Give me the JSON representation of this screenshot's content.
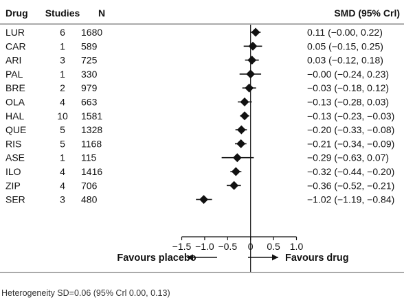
{
  "chart_data": {
    "type": "forest",
    "columns": {
      "drug": "Drug",
      "studies": "Studies",
      "n": "N",
      "smd": "SMD (95% Crl)"
    },
    "rows": [
      {
        "drug": "LUR",
        "studies": "6",
        "n": "1680",
        "smd": 0.11,
        "lo": -0.0,
        "hi": 0.22,
        "ci_text": "0.11 (−0.00, 0.22)"
      },
      {
        "drug": "CAR",
        "studies": "1",
        "n": "589",
        "smd": 0.05,
        "lo": -0.15,
        "hi": 0.25,
        "ci_text": "0.05 (−0.15, 0.25)"
      },
      {
        "drug": "ARI",
        "studies": "3",
        "n": "725",
        "smd": 0.03,
        "lo": -0.12,
        "hi": 0.18,
        "ci_text": "0.03 (−0.12, 0.18)"
      },
      {
        "drug": "PAL",
        "studies": "1",
        "n": "330",
        "smd": -0.0,
        "lo": -0.24,
        "hi": 0.23,
        "ci_text": "−0.00 (−0.24, 0.23)"
      },
      {
        "drug": "BRE",
        "studies": "2",
        "n": "979",
        "smd": -0.03,
        "lo": -0.18,
        "hi": 0.12,
        "ci_text": "−0.03 (−0.18, 0.12)"
      },
      {
        "drug": "OLA",
        "studies": "4",
        "n": "663",
        "smd": -0.13,
        "lo": -0.28,
        "hi": 0.03,
        "ci_text": "−0.13 (−0.28, 0.03)"
      },
      {
        "drug": "HAL",
        "studies": "10",
        "n": "1581",
        "smd": -0.13,
        "lo": -0.23,
        "hi": -0.03,
        "ci_text": "−0.13 (−0.23, −0.03)"
      },
      {
        "drug": "QUE",
        "studies": "5",
        "n": "1328",
        "smd": -0.2,
        "lo": -0.33,
        "hi": -0.08,
        "ci_text": "−0.20 (−0.33, −0.08)"
      },
      {
        "drug": "RIS",
        "studies": "5",
        "n": "1168",
        "smd": -0.21,
        "lo": -0.34,
        "hi": -0.09,
        "ci_text": "−0.21 (−0.34, −0.09)"
      },
      {
        "drug": "ASE",
        "studies": "1",
        "n": "115",
        "smd": -0.29,
        "lo": -0.63,
        "hi": 0.07,
        "ci_text": "−0.29 (−0.63, 0.07)"
      },
      {
        "drug": "ILO",
        "studies": "4",
        "n": "1416",
        "smd": -0.32,
        "lo": -0.44,
        "hi": -0.2,
        "ci_text": "−0.32 (−0.44, −0.20)"
      },
      {
        "drug": "ZIP",
        "studies": "4",
        "n": "706",
        "smd": -0.36,
        "lo": -0.52,
        "hi": -0.21,
        "ci_text": "−0.36 (−0.52, −0.21)"
      },
      {
        "drug": "SER",
        "studies": "3",
        "n": "480",
        "smd": -1.02,
        "lo": -1.19,
        "hi": -0.84,
        "ci_text": "−1.02 (−1.19, −0.84)"
      }
    ],
    "xlim": [
      -1.5,
      1.0
    ],
    "x_ticks": [
      -1.5,
      -1.0,
      -0.5,
      0,
      0.5,
      1.0
    ],
    "x_tick_labels": [
      "−1.5",
      "−1.0",
      "−0.5",
      "0",
      "0.5",
      "1.0"
    ],
    "reference_line": 0,
    "label_left": "Favours placebo",
    "label_right": "Favours drug",
    "footnote": "Heterogeneity SD=0.06 (95% Crl 0.00, 0.13)",
    "grid": false
  }
}
